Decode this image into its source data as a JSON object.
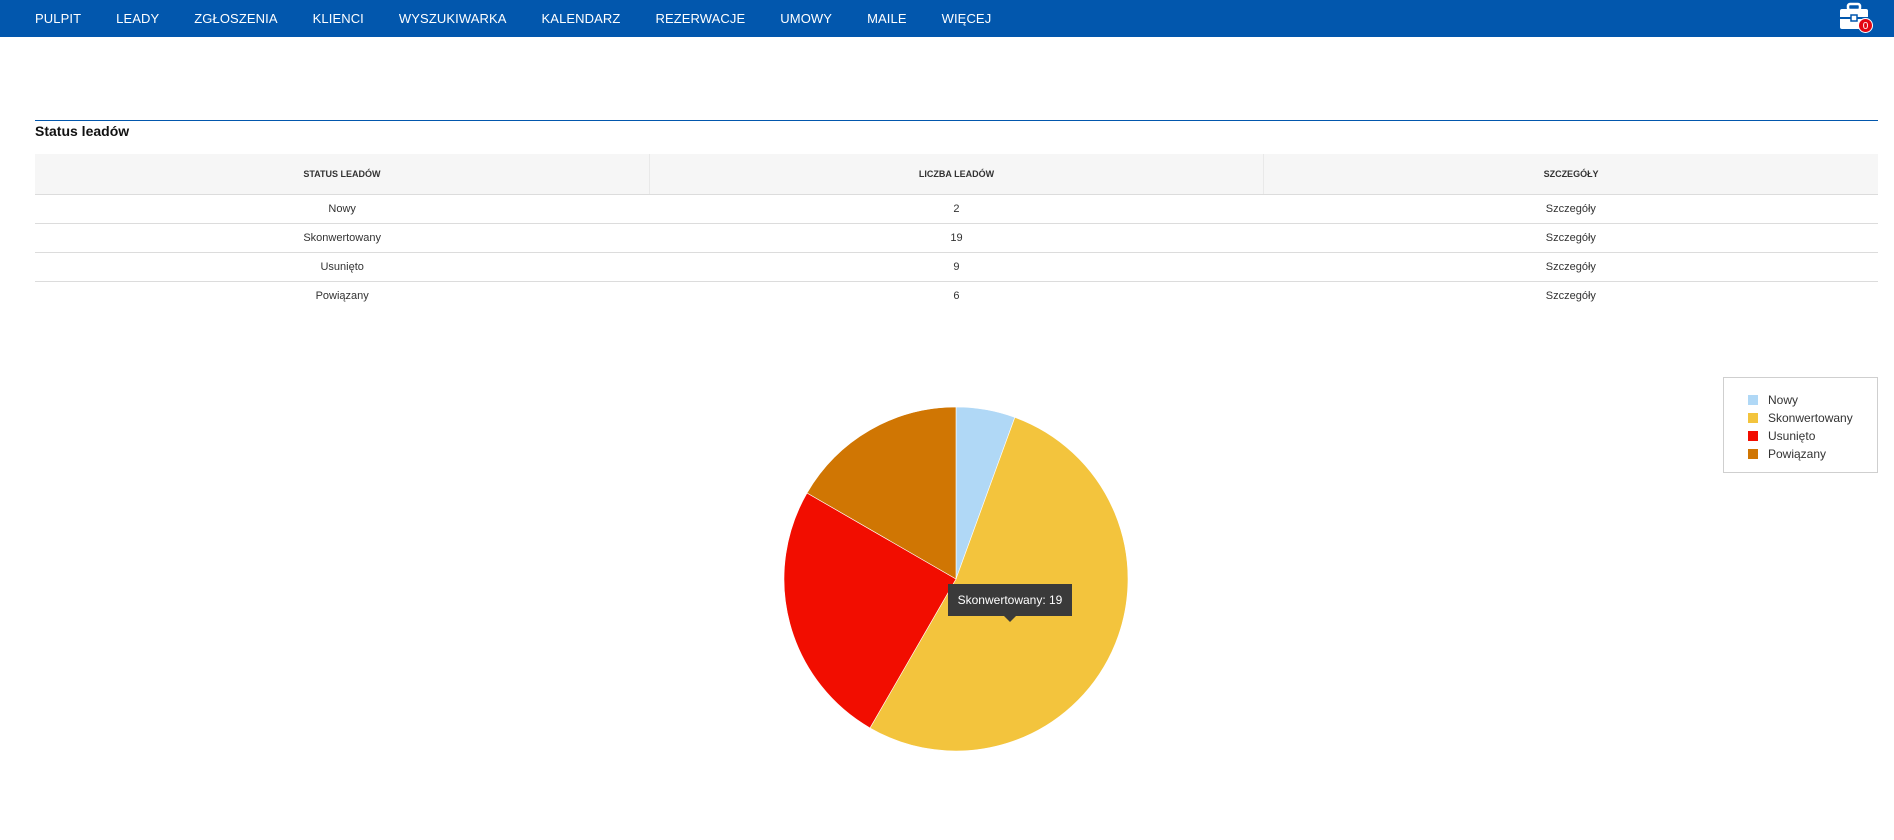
{
  "nav": {
    "items": [
      "PULPIT",
      "LEADY",
      "ZGŁOSZENIA",
      "KLIENCI",
      "WYSZUKIWARKA",
      "KALENDARZ",
      "REZERWACJE",
      "UMOWY",
      "MAILE",
      "WIĘCEJ"
    ],
    "briefcase_icon": "briefcase-icon",
    "briefcase_count": "0"
  },
  "section": {
    "title": "Status leadów"
  },
  "table": {
    "headers": [
      "STATUS LEADÓW",
      "LICZBA LEADÓW",
      "SZCZEGÓŁY"
    ],
    "rows": [
      {
        "status": "Nowy",
        "count": "2",
        "details": "Szczegóły"
      },
      {
        "status": "Skonwertowany",
        "count": "19",
        "details": "Szczegóły"
      },
      {
        "status": "Usunięto",
        "count": "9",
        "details": "Szczegóły"
      },
      {
        "status": "Powiązany",
        "count": "6",
        "details": "Szczegóły"
      }
    ]
  },
  "chart_data": {
    "type": "pie",
    "categories": [
      "Nowy",
      "Skonwertowany",
      "Usunięto",
      "Powiązany"
    ],
    "values": [
      2,
      19,
      9,
      6
    ],
    "colors": [
      "#b0d8f6",
      "#f3c43d",
      "#f20d00",
      "#d07603"
    ],
    "legend": "top-right",
    "tooltip": "Skonwertowany: 19"
  }
}
